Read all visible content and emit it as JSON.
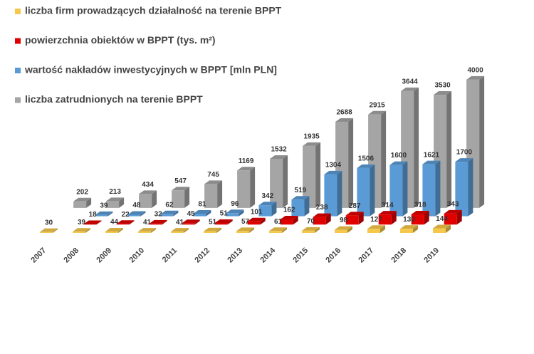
{
  "chart_data": {
    "type": "bar3d",
    "categories": [
      "2007",
      "2008",
      "2009",
      "2010",
      "2011",
      "2012",
      "2013",
      "2014",
      "2015",
      "2016",
      "2017",
      "2018",
      "2019"
    ],
    "series": [
      {
        "name": "liczba firm prowadzących działalność na terenie BPPT",
        "color": "#f5c84c",
        "values": [
          30,
          39,
          44,
          41,
          41,
          51,
          57,
          61,
          70,
          98,
          127,
          130,
          144
        ]
      },
      {
        "name": "powierzchnia obiektów w BPPT (tys. m²)",
        "color": "#e00000",
        "values": [
          null,
          18,
          22,
          32,
          45,
          51,
          101,
          162,
          238,
          287,
          314,
          318,
          343
        ]
      },
      {
        "name": "wartość nakładów inwestycyjnych w BPPT [mln PLN]",
        "color": "#5b9bd5",
        "values": [
          null,
          39,
          48,
          62,
          81,
          96,
          342,
          519,
          1304,
          1506,
          1600,
          1621,
          1700
        ]
      },
      {
        "name": "liczba zatrudnionych na terenie BPPT",
        "color": "#a5a5a5",
        "values": [
          202,
          213,
          434,
          547,
          745,
          1169,
          1532,
          1935,
          2688,
          2915,
          3644,
          3530,
          4000
        ]
      }
    ]
  }
}
